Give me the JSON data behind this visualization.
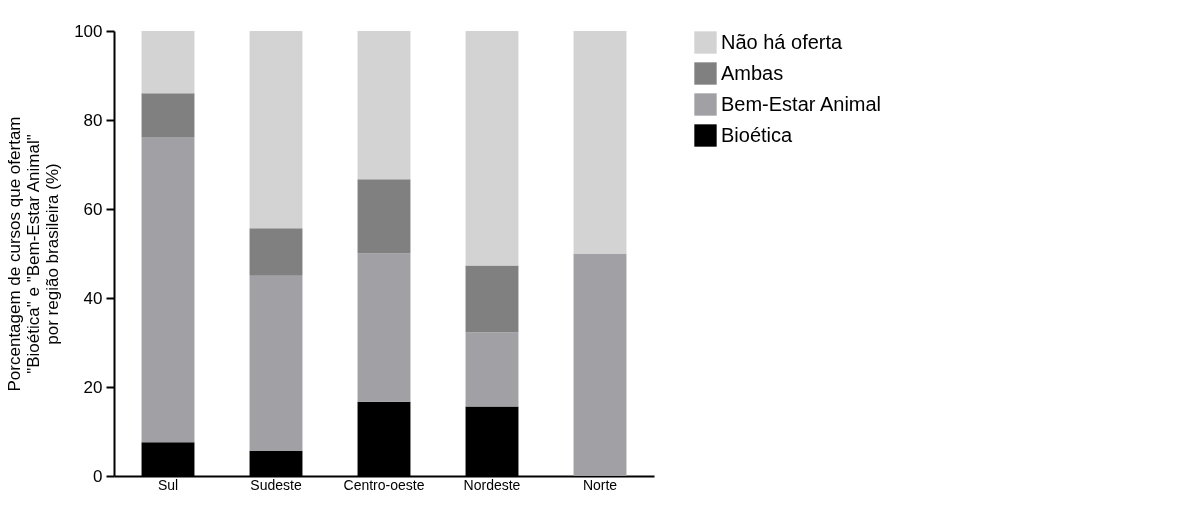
{
  "chart_data": {
    "type": "bar",
    "stacked": true,
    "ylabel": "Porcentagem de cursos que ofertam\n\"Bioética\" e \"Bem-Estar Animal\"\npor região brasileira (%)",
    "categories": [
      "Sul",
      "Sudeste",
      "Centro-oeste",
      "Nordeste",
      "Norte"
    ],
    "series": [
      {
        "name": "Bioética",
        "color": "#000000",
        "values": [
          7.6,
          5.6,
          16.7,
          15.6,
          0
        ]
      },
      {
        "name": "Bem-Estar Animal",
        "color": "#a1a1a5",
        "values": [
          68.6,
          39.4,
          33.3,
          16.7,
          50
        ]
      },
      {
        "name": "Ambas",
        "color": "#808080",
        "values": [
          9.8,
          10.7,
          16.7,
          15,
          0
        ]
      },
      {
        "name": "Não há oferta",
        "color": "#d3d3d3",
        "values": [
          14,
          44.3,
          33.3,
          52.7,
          50
        ]
      }
    ],
    "ylim": [
      0,
      100
    ],
    "yticks": [
      0,
      20,
      40,
      60,
      80,
      100
    ],
    "grid": false,
    "legend": "right"
  }
}
